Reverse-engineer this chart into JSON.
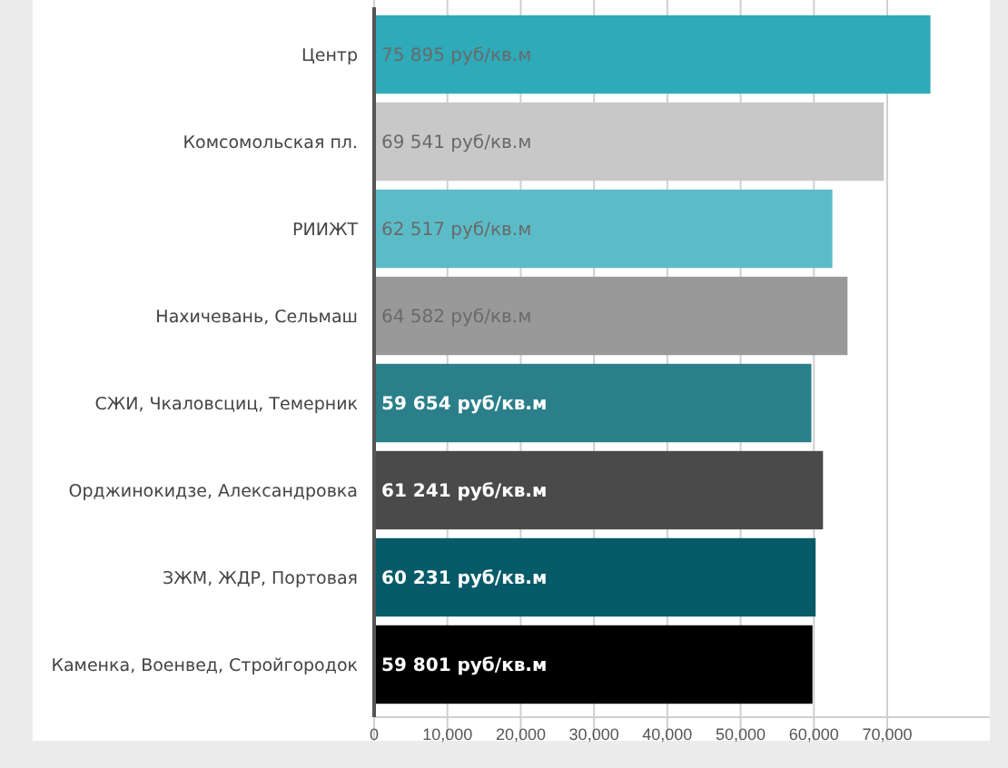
{
  "chart_data": {
    "type": "bar",
    "orientation": "horizontal",
    "categories": [
      "Центр",
      "Комсомольская пл.",
      "РИИЖТ",
      "Нахичевань, Сельмаш",
      "СЖИ, Чкаловсциц, Темерник",
      "Орджинокидзе, Александровка",
      "ЗЖМ, ЖДР, Портовая",
      "Каменка, Военвед, Стройгородок"
    ],
    "values": [
      75895,
      69541,
      62517,
      64582,
      59654,
      61241,
      60231,
      59801
    ],
    "colors": [
      "#2eaab8",
      "#c8c8c8",
      "#5bbcc8",
      "#999999",
      "#2a7f8a",
      "#4a4a4a",
      "#075a68",
      "#000000"
    ],
    "value_labels": [
      "75 895 руб/кв.м",
      "69 541 руб/кв.м",
      "62 517 руб/кв.м",
      "64 582 руб/кв.м",
      "59 654 руб/кв.м",
      "61 241 руб/кв.м",
      "60 231 руб/кв.м",
      "59 801 руб/кв.м"
    ],
    "xlim": [
      0,
      84000
    ],
    "xticks": [
      0,
      {
        "value": 10000,
        "label": "10,000"
      },
      {
        "value": 20000,
        "label": "20,000"
      },
      {
        "value": 30000,
        "label": "30,000"
      },
      {
        "value": 40000,
        "label": "40,000"
      },
      {
        "value": 50000,
        "label": "50,000"
      },
      {
        "value": 60000,
        "label": "60,000"
      },
      {
        "value": 70000,
        "label": "70,000"
      }
    ],
    "grid": "x"
  }
}
